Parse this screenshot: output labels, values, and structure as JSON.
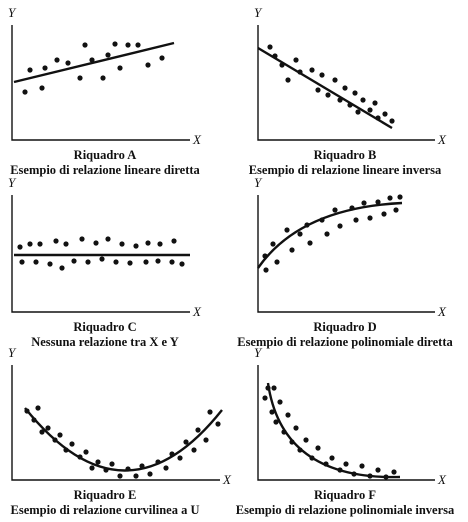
{
  "panels": [
    {
      "y_label": "Y",
      "x_label": "X",
      "title": "Riquadro A",
      "caption": "Esempio di relazione lineare diretta"
    },
    {
      "y_label": "Y",
      "x_label": "X",
      "title": "Riquadro B",
      "caption": "Esempio di relazione lineare inversa"
    },
    {
      "y_label": "Y",
      "x_label": "X",
      "title": "Riquadro C",
      "caption": "Nessuna relazione tra X e Y"
    },
    {
      "y_label": "Y",
      "x_label": "X",
      "title": "Riquadro D",
      "caption": "Esempio di relazione polinomiale diretta"
    },
    {
      "y_label": "Y",
      "x_label": "X",
      "title": "Riquadro E",
      "caption": "Esempio di relazione curvilinea a U"
    },
    {
      "y_label": "Y",
      "x_label": "X",
      "title": "Riquadro F",
      "caption": "Esempio di relazione polinomiale inversa"
    }
  ]
}
